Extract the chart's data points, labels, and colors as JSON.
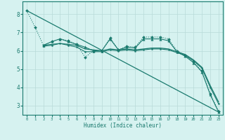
{
  "xlabel": "Humidex (Indice chaleur)",
  "background_color": "#d6f2f0",
  "grid_color": "#b8dbd8",
  "line_color": "#1a7a6e",
  "xlim": [
    -0.5,
    23.5
  ],
  "ylim": [
    2.5,
    8.7
  ],
  "yticks": [
    3,
    4,
    5,
    6,
    7,
    8
  ],
  "xticks": [
    0,
    1,
    2,
    3,
    4,
    5,
    6,
    7,
    8,
    9,
    10,
    11,
    12,
    13,
    14,
    15,
    16,
    17,
    18,
    19,
    20,
    21,
    22,
    23
  ],
  "series": [
    {
      "x": [
        0,
        1,
        2,
        3,
        4,
        5,
        6,
        7,
        8,
        9,
        10,
        11,
        12,
        13,
        14,
        15,
        16,
        17,
        18,
        19,
        20,
        21,
        22,
        23
      ],
      "y": [
        8.2,
        7.3,
        6.3,
        6.5,
        6.65,
        6.55,
        6.35,
        5.65,
        6.0,
        6.0,
        6.7,
        6.05,
        6.25,
        6.2,
        6.75,
        6.75,
        6.75,
        6.65,
        6.0,
        5.75,
        5.4,
        4.9,
        3.65,
        2.7
      ],
      "marker": "D",
      "marker_size": 2.0,
      "linewidth": 0.8,
      "linestyle": ":"
    },
    {
      "x": [
        2,
        3,
        4,
        5,
        6,
        7,
        8,
        9,
        10,
        11,
        12,
        13,
        14,
        15,
        16,
        17,
        18,
        19,
        20,
        21,
        22,
        23
      ],
      "y": [
        6.3,
        6.5,
        6.65,
        6.5,
        6.35,
        6.2,
        6.0,
        6.0,
        6.65,
        6.05,
        6.2,
        6.15,
        6.65,
        6.65,
        6.65,
        6.55,
        5.95,
        5.7,
        5.35,
        4.85,
        3.6,
        2.65
      ],
      "marker": "^",
      "marker_size": 2.5,
      "linewidth": 0.8,
      "linestyle": "-"
    },
    {
      "x": [
        2,
        3,
        4,
        5,
        6,
        7,
        8,
        9,
        10,
        11,
        12,
        13,
        14,
        15,
        16,
        17,
        18,
        19,
        20,
        21,
        22,
        23
      ],
      "y": [
        6.3,
        6.35,
        6.4,
        6.35,
        6.3,
        6.1,
        6.05,
        6.0,
        6.1,
        6.05,
        6.1,
        6.05,
        6.1,
        6.15,
        6.15,
        6.1,
        5.95,
        5.8,
        5.5,
        5.1,
        4.1,
        3.2
      ],
      "marker": null,
      "marker_size": 0,
      "linewidth": 0.9,
      "linestyle": "-"
    },
    {
      "x": [
        0,
        23
      ],
      "y": [
        8.2,
        2.65
      ],
      "marker": null,
      "marker_size": 0,
      "linewidth": 0.9,
      "linestyle": "-"
    },
    {
      "x": [
        2,
        3,
        4,
        5,
        6,
        7,
        8,
        9,
        10,
        11,
        12,
        13,
        14,
        15,
        16,
        17,
        18,
        19,
        20,
        21,
        22,
        23
      ],
      "y": [
        6.25,
        6.3,
        6.4,
        6.3,
        6.2,
        5.95,
        5.95,
        5.95,
        6.05,
        6.0,
        6.05,
        6.0,
        6.05,
        6.1,
        6.1,
        6.05,
        5.9,
        5.75,
        5.45,
        5.05,
        4.0,
        3.1
      ],
      "marker": "o",
      "marker_size": 1.5,
      "linewidth": 0.8,
      "linestyle": "-"
    }
  ]
}
